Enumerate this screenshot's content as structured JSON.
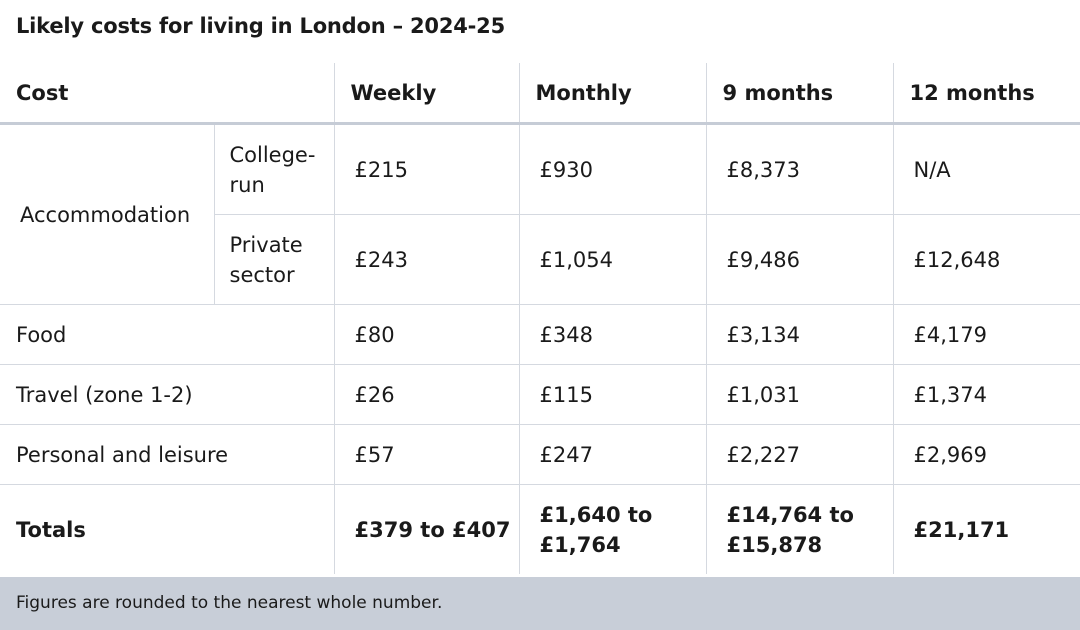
{
  "title": "Likely costs for living in London – 2024-25",
  "headers": {
    "cost": "Cost",
    "weekly": "Weekly",
    "monthly": "Monthly",
    "nine_months": "9 months",
    "twelve_months": "12 months"
  },
  "accommodation": {
    "label": "Accommodation",
    "college": {
      "label": "College-run",
      "weekly": "£215",
      "monthly": "£930",
      "nine_months": "£8,373",
      "twelve_months": "N/A"
    },
    "private": {
      "label": "Private sector",
      "weekly": "£243",
      "monthly": "£1,054",
      "nine_months": "£9,486",
      "twelve_months": "£12,648"
    }
  },
  "rows": [
    {
      "label": "Food",
      "weekly": "£80",
      "monthly": "£348",
      "nine_months": "£3,134",
      "twelve_months": "£4,179"
    },
    {
      "label": "Travel (zone 1-2)",
      "weekly": "£26",
      "monthly": "£115",
      "nine_months": "£1,031",
      "twelve_months": "£1,374"
    },
    {
      "label": "Personal and leisure",
      "weekly": "£57",
      "monthly": "£247",
      "nine_months": "£2,227",
      "twelve_months": "£2,969"
    }
  ],
  "totals": {
    "label": "Totals",
    "weekly": "£379 to £407",
    "monthly": "£1,640 to £1,764",
    "nine_months": "£14,764 to £15,878",
    "twelve_months": "£21,171"
  },
  "footer": "Figures are rounded to the nearest whole number."
}
